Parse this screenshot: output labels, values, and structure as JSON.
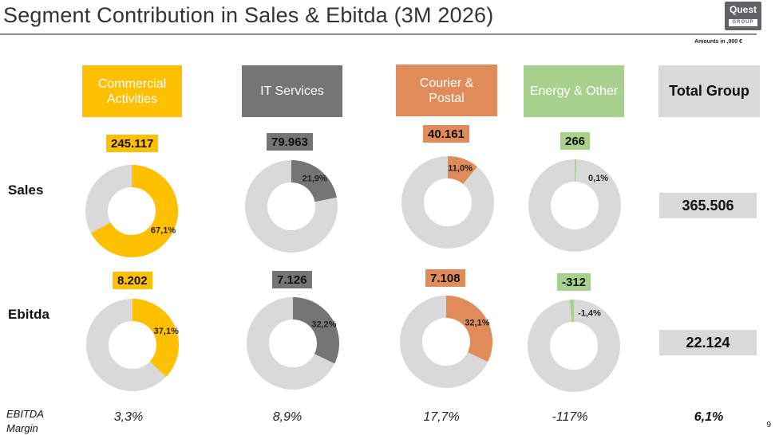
{
  "title": "Segment Contribution in Sales & Ebitda (3M 2026)",
  "logo": {
    "main": "Quest",
    "sub": "GROUP"
  },
  "amounts_note": "Amounts in ,000 €",
  "row_labels": {
    "sales": "Sales",
    "ebitda": "Ebitda",
    "margin": [
      "EBITDA",
      "Margin"
    ]
  },
  "colors": {
    "remainder": "#d9d9d9"
  },
  "segments": [
    {
      "name": "Commercial Activities",
      "color": "#ffc000",
      "sales_value": "245.117",
      "sales_share": "67,1%",
      "ebitda_value": "8.202",
      "ebitda_share": "37,1%",
      "ebitda_margin": "3,3%"
    },
    {
      "name": "IT Services",
      "color": "#757575",
      "sales_value": "79.963",
      "sales_share": "21,9%",
      "ebitda_value": "7.126",
      "ebitda_share": "32,2%",
      "ebitda_margin": "8,9%"
    },
    {
      "name": "Courier & Postal",
      "color": "#e08c5a",
      "sales_value": "40.161",
      "sales_share": "11,0%",
      "ebitda_value": "7.108",
      "ebitda_share": "32,1%",
      "ebitda_margin": "17,7%"
    },
    {
      "name": "Energy & Other",
      "color": "#a9d18e",
      "sales_value": "266",
      "sales_share": "0,1%",
      "ebitda_value": "-312",
      "ebitda_share": "-1,4%",
      "ebitda_margin": "-117%"
    }
  ],
  "total": {
    "name": "Total Group",
    "sales": "365.506",
    "ebitda": "22.124",
    "ebitda_margin": "6,1%"
  },
  "chart_data": [
    {
      "type": "pie",
      "name": "Sales",
      "categories": [
        "Commercial Activities",
        "IT Services",
        "Courier & Postal",
        "Energy & Other"
      ],
      "values": [
        67.1,
        21.9,
        11.0,
        0.1
      ]
    },
    {
      "type": "pie",
      "name": "Ebitda",
      "categories": [
        "Commercial Activities",
        "IT Services",
        "Courier & Postal",
        "Energy & Other"
      ],
      "values": [
        37.1,
        32.2,
        32.1,
        -1.4
      ]
    }
  ],
  "page_number": "9"
}
